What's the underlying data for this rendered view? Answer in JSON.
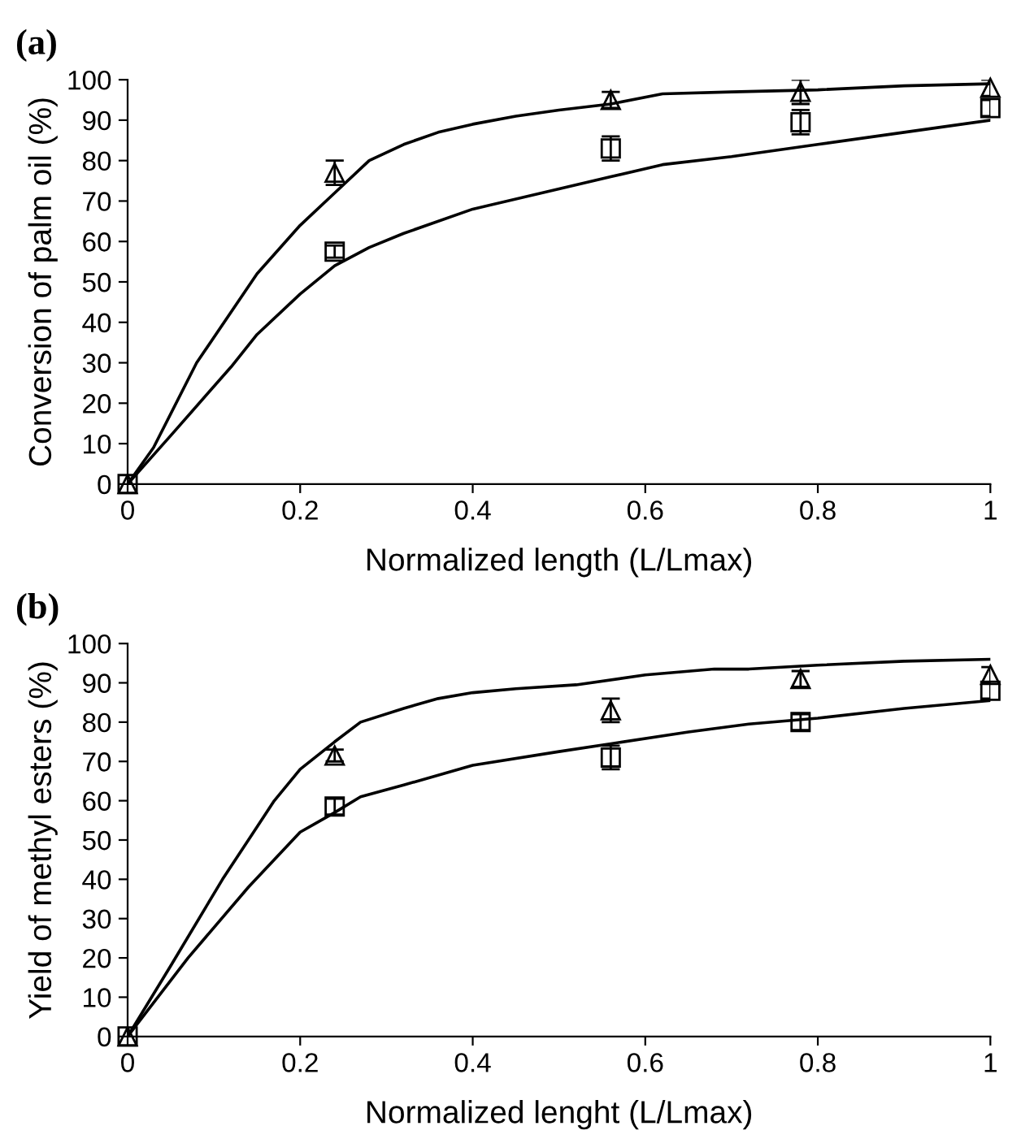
{
  "chart_data": [
    {
      "type": "line",
      "title": "(a)",
      "xlabel": "Normalized length (L/Lmax)",
      "ylabel": "Conversion of palm oil (%)",
      "xlim": [
        0,
        1
      ],
      "ylim": [
        0,
        100
      ],
      "xticks": [
        0,
        0.2,
        0.4,
        0.6,
        0.8,
        1
      ],
      "yticks": [
        0,
        10,
        20,
        30,
        40,
        50,
        60,
        70,
        80,
        90,
        100
      ],
      "grid": false,
      "legend": false,
      "series": [
        {
          "type": "scatter",
          "marker": "square",
          "color": "#000000",
          "x": [
            0,
            0.24,
            0.56,
            0.78,
            1.0
          ],
          "values": [
            0,
            57.5,
            83,
            89.5,
            93
          ],
          "errors": [
            null,
            1.5,
            3,
            3,
            2
          ]
        },
        {
          "type": "scatter",
          "marker": "triangle",
          "color": "#000000",
          "x": [
            0,
            0.24,
            0.56,
            0.78,
            1.0
          ],
          "values": [
            0,
            77,
            95,
            97,
            98
          ],
          "errors": [
            null,
            3,
            2,
            3,
            2
          ]
        },
        {
          "type": "line",
          "marker": "none",
          "line_style": "solid",
          "color": "#000000",
          "x": [
            0,
            0.03,
            0.08,
            0.15,
            0.2,
            0.24,
            0.28,
            0.32,
            0.36,
            0.4,
            0.45,
            0.5,
            0.56,
            0.62,
            0.7,
            0.8,
            0.9,
            1.0
          ],
          "values": [
            0,
            9,
            30,
            52,
            64,
            72,
            80,
            84,
            87,
            89,
            91,
            92.5,
            94,
            96.5,
            97,
            97.5,
            98.5,
            99
          ]
        },
        {
          "type": "line",
          "marker": "none",
          "line_style": "solid",
          "color": "#000000",
          "x": [
            0,
            0.05,
            0.12,
            0.15,
            0.2,
            0.24,
            0.28,
            0.32,
            0.4,
            0.5,
            0.56,
            0.62,
            0.7,
            0.8,
            0.9,
            1.0
          ],
          "values": [
            0,
            12,
            29,
            37,
            47,
            54,
            58.5,
            62,
            68,
            73,
            76,
            79,
            81,
            84,
            87,
            90
          ]
        }
      ]
    },
    {
      "type": "line",
      "title": "(b)",
      "xlabel": "Normalized lenght (L/Lmax)",
      "ylabel": "Yield of methyl esters (%)",
      "xlim": [
        0,
        1
      ],
      "ylim": [
        0,
        100
      ],
      "xticks": [
        0,
        0.2,
        0.4,
        0.6,
        0.8,
        1
      ],
      "yticks": [
        0,
        10,
        20,
        30,
        40,
        50,
        60,
        70,
        80,
        90,
        100
      ],
      "grid": false,
      "legend": false,
      "series": [
        {
          "type": "scatter",
          "marker": "square",
          "color": "#000000",
          "x": [
            0,
            0.24,
            0.56,
            0.78,
            1.0
          ],
          "values": [
            0,
            58.5,
            71,
            80,
            88
          ],
          "errors": [
            null,
            2,
            3,
            2,
            2
          ]
        },
        {
          "type": "scatter",
          "marker": "triangle",
          "color": "#000000",
          "x": [
            0,
            0.24,
            0.56,
            0.78,
            1.0
          ],
          "values": [
            0,
            71.5,
            83,
            91,
            92
          ],
          "errors": [
            null,
            1.5,
            3,
            2,
            2
          ]
        },
        {
          "type": "line",
          "marker": "none",
          "line_style": "solid",
          "color": "#000000",
          "x": [
            0,
            0.05,
            0.11,
            0.17,
            0.2,
            0.24,
            0.27,
            0.32,
            0.36,
            0.4,
            0.45,
            0.52,
            0.6,
            0.68,
            0.72,
            0.8,
            0.9,
            1.0
          ],
          "values": [
            0,
            18,
            40,
            60,
            68,
            75,
            80,
            83.5,
            86,
            87.5,
            88.5,
            89.5,
            92,
            93.5,
            93.5,
            94.5,
            95.5,
            96
          ]
        },
        {
          "type": "line",
          "marker": "none",
          "line_style": "solid",
          "color": "#000000",
          "x": [
            0,
            0.07,
            0.14,
            0.2,
            0.24,
            0.27,
            0.32,
            0.4,
            0.5,
            0.56,
            0.65,
            0.72,
            0.8,
            0.9,
            1.0
          ],
          "values": [
            0,
            20,
            38,
            52,
            57,
            61,
            64,
            69,
            72.5,
            74.5,
            77.5,
            79.5,
            81,
            83.5,
            85.5
          ]
        }
      ]
    }
  ]
}
